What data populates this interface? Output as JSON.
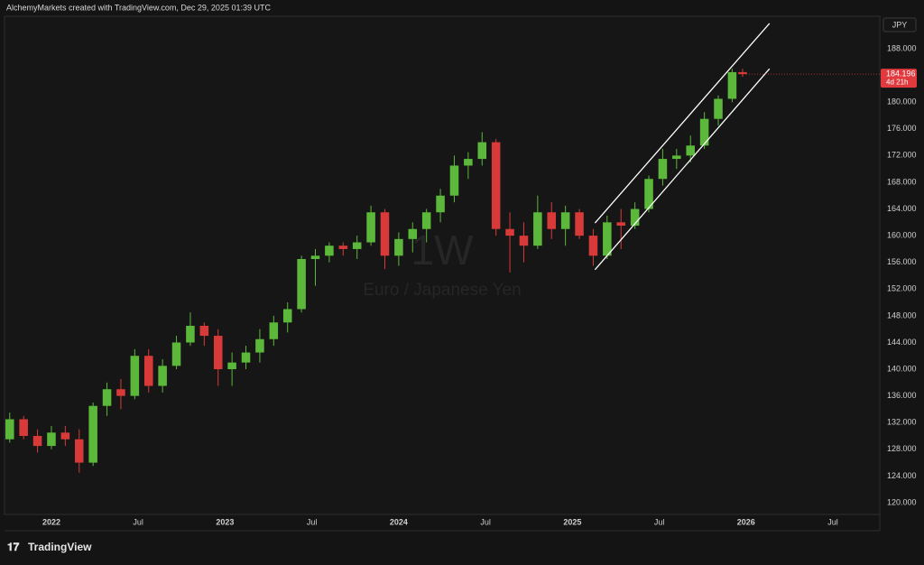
{
  "header": "AlchemyMarkets created with TradingView.com, Dec 29, 2025 01:39 UTC",
  "logo": "TradingView",
  "chart_data": {
    "type": "candlestick",
    "interval_watermark": "1W",
    "symbol_description": "Euro / Japanese Yen",
    "currency": "JPY",
    "countdown": "4d 21h",
    "up_color": "#5cb83a",
    "down_color": "#d83a3a",
    "last_price_color": "#e0393e",
    "grid": false,
    "x": [
      2021.76,
      2021.84,
      2021.92,
      2022.0,
      2022.08,
      2022.16,
      2022.24,
      2022.32,
      2022.4,
      2022.48,
      2022.56,
      2022.64,
      2022.72,
      2022.8,
      2022.88,
      2022.96,
      2023.04,
      2023.12,
      2023.2,
      2023.28,
      2023.36,
      2023.44,
      2023.52,
      2023.6,
      2023.68,
      2023.76,
      2023.84,
      2023.92,
      2024.0,
      2024.08,
      2024.16,
      2024.24,
      2024.32,
      2024.4,
      2024.48,
      2024.56,
      2024.64,
      2024.72,
      2024.8,
      2024.88,
      2024.96,
      2025.04,
      2025.12,
      2025.2,
      2025.28,
      2025.36,
      2025.44,
      2025.52,
      2025.6,
      2025.68,
      2025.76,
      2025.84,
      2025.92,
      2025.98
    ],
    "open": [
      129.5,
      132.5,
      130,
      128.5,
      130.5,
      129.5,
      126,
      134.5,
      137,
      136,
      142,
      137.5,
      140.5,
      144,
      146.5,
      145,
      140,
      141,
      142.5,
      144.5,
      147,
      149,
      156.5,
      157,
      158.5,
      158,
      159,
      163.5,
      157,
      159.5,
      161,
      163.5,
      166,
      170.5,
      171.5,
      174,
      161,
      160,
      158.5,
      163.5,
      161,
      163.5,
      160,
      157,
      162,
      161.5,
      164,
      168.5,
      171.5,
      172,
      173.5,
      177.5,
      180.5,
      184.5
    ],
    "high": [
      133.5,
      133,
      131,
      131.5,
      131.5,
      131,
      135,
      138,
      138.5,
      143,
      143,
      141.5,
      145,
      148.5,
      147,
      146,
      142.5,
      143.5,
      146,
      148,
      150,
      157,
      158,
      159,
      159,
      160,
      164.5,
      164,
      160.5,
      162,
      164,
      167,
      172,
      172.5,
      175.5,
      174.5,
      163.5,
      162,
      166,
      165,
      164.5,
      164,
      161,
      163,
      164,
      165,
      169,
      173,
      173,
      175,
      178.5,
      181,
      185,
      185
    ],
    "low": [
      129,
      129.5,
      127.5,
      128,
      128.5,
      124.5,
      125.5,
      133,
      134,
      135.5,
      136.5,
      136.5,
      140,
      143.5,
      143.5,
      137.5,
      137.5,
      140,
      141,
      143.5,
      145.5,
      148.5,
      152.5,
      156,
      157,
      156.5,
      158.5,
      155,
      155.5,
      157.5,
      159,
      162,
      165,
      168.5,
      170.5,
      160,
      154.5,
      156,
      158,
      159.5,
      158.5,
      159.5,
      155.5,
      156.5,
      158,
      161,
      163.5,
      167.5,
      170,
      171,
      173,
      176.5,
      180,
      183.8
    ],
    "close": [
      132.5,
      130,
      128.5,
      130.5,
      129.5,
      126,
      134.5,
      137,
      136,
      142,
      137.5,
      140.5,
      144,
      146.5,
      145,
      140,
      141,
      142.5,
      144.5,
      147,
      149,
      156.5,
      157,
      158.5,
      158,
      159,
      163.5,
      157,
      159.5,
      161,
      163.5,
      166,
      170.5,
      171.5,
      174,
      161,
      160,
      158.5,
      163.5,
      161,
      163.5,
      160,
      157,
      162,
      161.5,
      164,
      168.5,
      171.5,
      172,
      173.5,
      177.5,
      180.5,
      184.5,
      184.196
    ],
    "trend_lines": [
      {
        "color": "#ffffff",
        "x": [
          2025.13,
          2026.135
        ],
        "y": [
          161.9,
          191.8
        ]
      },
      {
        "color": "#ffffff",
        "x": [
          2025.13,
          2026.135
        ],
        "y": [
          154.9,
          185.0
        ]
      }
    ],
    "xlim": [
      2021.73,
      2026.77
    ],
    "xticks": [
      {
        "value": 2022,
        "label": "2022"
      },
      {
        "value": 2022.5,
        "label": "Jul"
      },
      {
        "value": 2023,
        "label": "2023"
      },
      {
        "value": 2023.5,
        "label": "Jul"
      },
      {
        "value": 2024,
        "label": "2024"
      },
      {
        "value": 2024.5,
        "label": "Jul"
      },
      {
        "value": 2025,
        "label": "2025"
      },
      {
        "value": 2025.5,
        "label": "Jul"
      },
      {
        "value": 2026,
        "label": "2026"
      },
      {
        "value": 2026.5,
        "label": "Jul"
      }
    ],
    "ylim": [
      118.24,
      192.87
    ],
    "yticks": [
      {
        "value": 120,
        "label": "120.000"
      },
      {
        "value": 124,
        "label": "124.000"
      },
      {
        "value": 128,
        "label": "128.000"
      },
      {
        "value": 132,
        "label": "132.000"
      },
      {
        "value": 136,
        "label": "136.000"
      },
      {
        "value": 140,
        "label": "140.000"
      },
      {
        "value": 144,
        "label": "144.000"
      },
      {
        "value": 148,
        "label": "148.000"
      },
      {
        "value": 152,
        "label": "152.000"
      },
      {
        "value": 156,
        "label": "156.000"
      },
      {
        "value": 160,
        "label": "160.000"
      },
      {
        "value": 164,
        "label": "164.000"
      },
      {
        "value": 168,
        "label": "168.000"
      },
      {
        "value": 172,
        "label": "172.000"
      },
      {
        "value": 176,
        "label": "176.000"
      },
      {
        "value": 180,
        "label": "180.000"
      },
      {
        "value": 184,
        "label": "184.000"
      },
      {
        "value": 188,
        "label": "188.000"
      }
    ]
  }
}
